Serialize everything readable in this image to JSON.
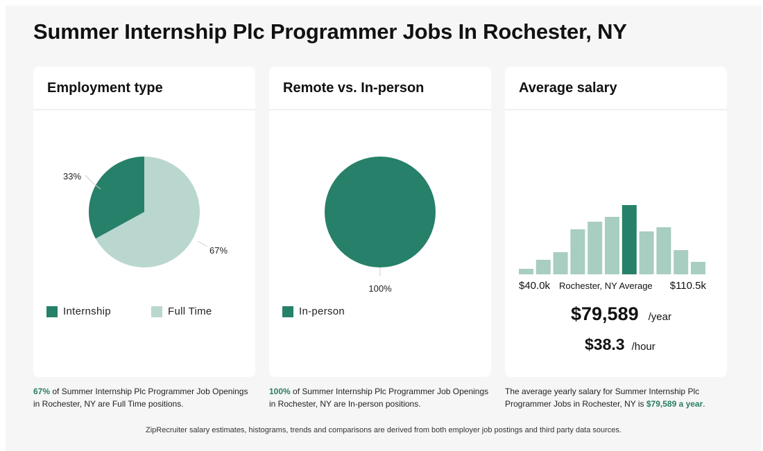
{
  "title": "Summer Internship Plc Programmer Jobs In Rochester, NY",
  "colors": {
    "dark_green": "#27806a",
    "light_green": "#b9d7ce",
    "hist_light": "#a8cdc1"
  },
  "cards": {
    "employment": {
      "header": "Employment type"
    },
    "remote": {
      "header": "Remote vs. In-person"
    },
    "salary": {
      "header": "Average salary"
    }
  },
  "chart_data": [
    {
      "type": "pie",
      "title": "Employment type",
      "slices": [
        {
          "label": "Internship",
          "value": 33,
          "display": "33%",
          "color": "#27806a"
        },
        {
          "label": "Full Time",
          "value": 67,
          "display": "67%",
          "color": "#b9d7ce"
        }
      ],
      "legend_position": "bottom"
    },
    {
      "type": "pie",
      "title": "Remote vs. In-person",
      "slices": [
        {
          "label": "In-person",
          "value": 100,
          "display": "100%",
          "color": "#27806a"
        }
      ],
      "legend_position": "bottom"
    },
    {
      "type": "bar",
      "title": "Average salary",
      "values": [
        8,
        21,
        32,
        65,
        76,
        83,
        100,
        62,
        68,
        35,
        18
      ],
      "highlight_index": 6,
      "x_min_label": "$40.0k",
      "x_max_label": "$110.5k",
      "marker_label": "Rochester, NY Average"
    }
  ],
  "salary": {
    "yearly": "$79,589",
    "yearly_unit": "/year",
    "hourly": "$38.3",
    "hourly_unit": "/hour"
  },
  "footnotes": {
    "employment": {
      "pct": "67%",
      "text": " of Summer Internship Plc Programmer Job Openings in Rochester, NY are Full Time positions."
    },
    "remote": {
      "pct": "100%",
      "text": " of Summer Internship Plc Programmer Job Openings in Rochester, NY are In-person positions."
    },
    "salary": {
      "text": "The average yearly salary for Summer Internship Plc Programmer Jobs in Rochester, NY is ",
      "amount": "$79,589 a year",
      "end": "."
    }
  },
  "source": "ZipRecruiter salary estimates, histograms, trends and comparisons are derived from both employer job postings and third party data sources."
}
